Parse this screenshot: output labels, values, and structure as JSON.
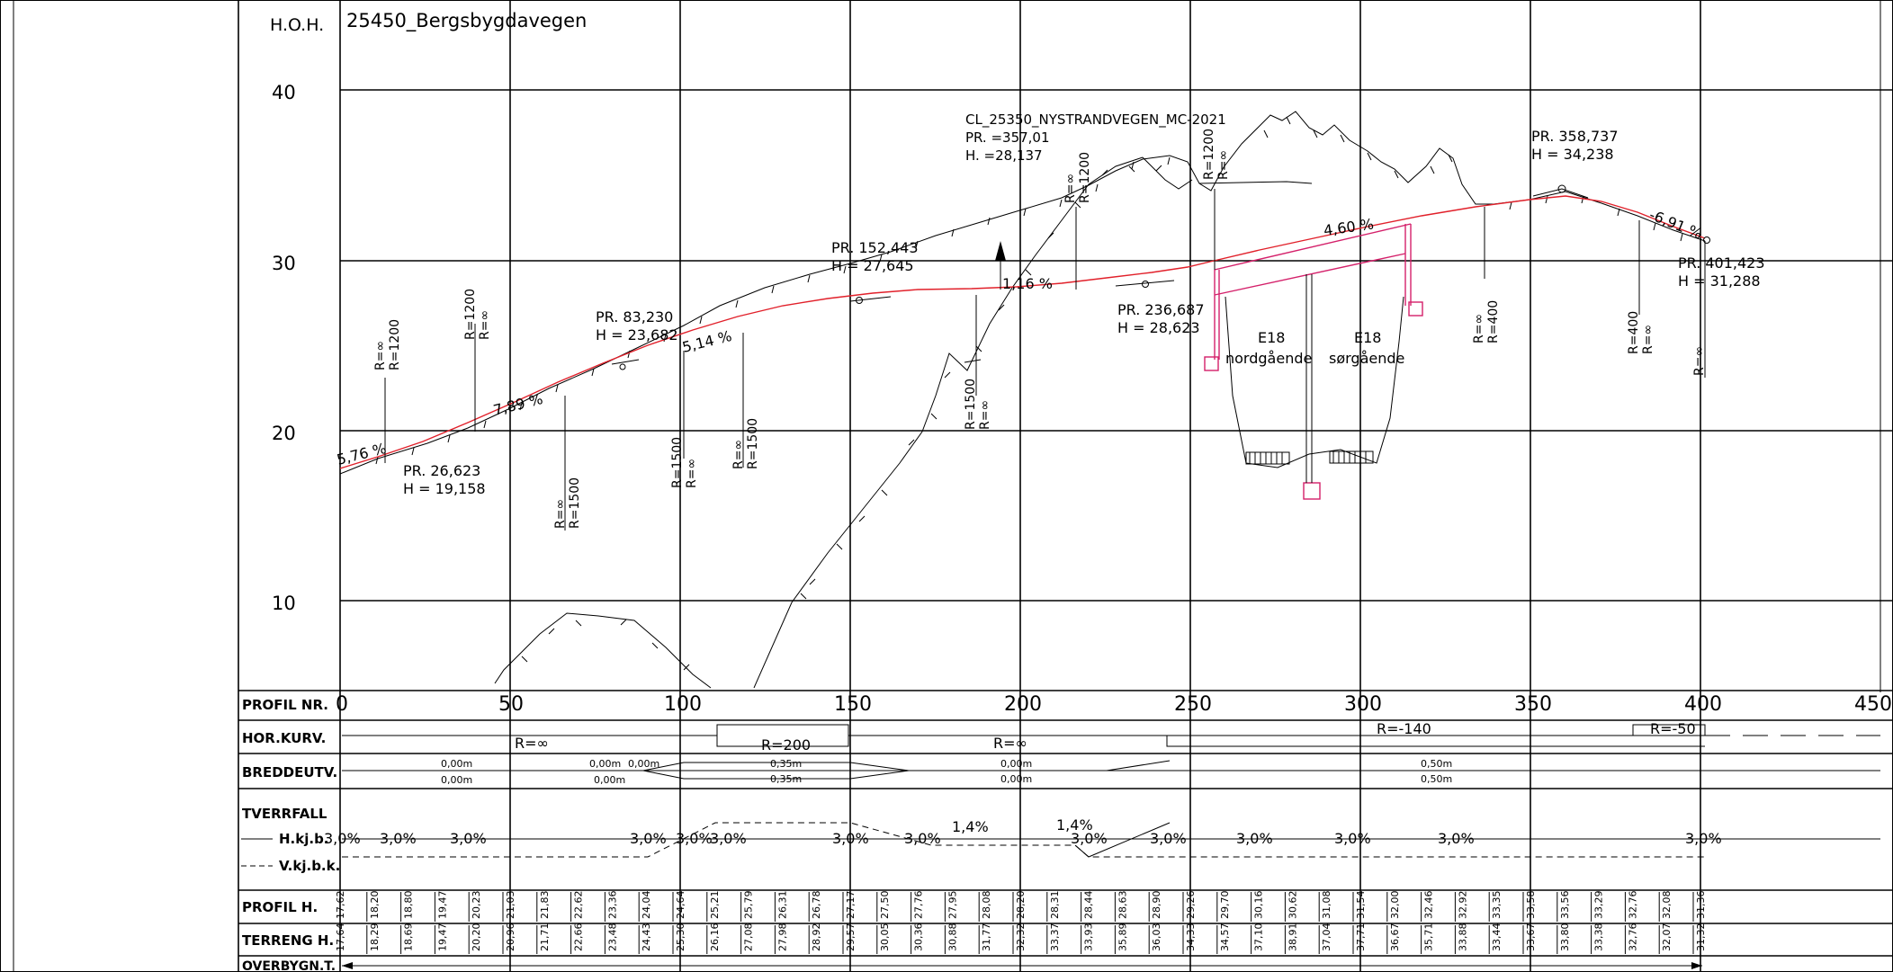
{
  "drawing": {
    "title": "25450_Bergsbygdavegen",
    "hoh_label": "H.O.H."
  },
  "elevation_axis": {
    "ticks": [
      "40",
      "30",
      "20",
      "10"
    ]
  },
  "profile_axis": {
    "ticks": [
      "0",
      "50",
      "100",
      "150",
      "200",
      "250",
      "300",
      "350",
      "400",
      "450"
    ]
  },
  "annotations": {
    "cl_title": "CL_25350_NYSTRANDVEGEN_MC-2021",
    "cl_pr": "PR. =357,01",
    "cl_h": "H. =28,137",
    "pr358_pr": "PR. 358,737",
    "pr358_h": "H = 34,238",
    "pr401_pr": "PR. 401,423",
    "pr401_h": "H = 31,288",
    "pr152_pr": "PR. 152,443",
    "pr152_h": "H = 27,645",
    "pr83_pr": "PR. 83,230",
    "pr83_h": "H = 23,682",
    "pr236_pr": "PR. 236,687",
    "pr236_h": "H = 28,623",
    "pr26_pr": "PR. 26,623",
    "pr26_h": "H = 19,158",
    "e18_a_1": "E18",
    "e18_a_2": "nordgående",
    "e18_b_1": "E18",
    "e18_b_2": "sørgående",
    "grade_576": "5,76 %",
    "grade_789": "7,89 %",
    "grade_514": "5,14 %",
    "grade_116": "1,16 %",
    "grade_460": "4,60 %",
    "grade_691": "-6,91 %"
  },
  "curve_labels": {
    "v1a": "R=∞",
    "v1b": "R=1200",
    "v2a": "R=1200",
    "v2b": "R=∞",
    "v3a": "R=∞",
    "v3b": "R=1500",
    "v4a": "R=1500",
    "v4b": "R=∞",
    "v5a": "R=∞",
    "v5b": "R=1500",
    "v6a": "R=1500",
    "v6b": "R=∞",
    "v7a": "R=∞",
    "v7b": "R=1200",
    "v8a": "R=1200",
    "v8b": "R=∞",
    "v9a": "R=∞",
    "v9b": "R=400",
    "v10a": "R=400",
    "v10b": "R=∞",
    "v11": "R=∞"
  },
  "band_table": {
    "rows": {
      "profil_nr": "PROFIL NR.",
      "hor_kurv": "HOR.KURV.",
      "breddeutv": "BREDDEUTV.",
      "tverrfall": "TVERRFALL",
      "hkjb": "H.kj.b.",
      "vkjb": "V.kj.b.k.",
      "profil_h": "PROFIL H.",
      "terreng_h": "TERRENG H.",
      "overbygn": "OVERBYGN.T."
    },
    "hor_kurv": [
      "R=∞",
      "R=200",
      "R=∞",
      "R=-140",
      "R=-50"
    ],
    "bredde": [
      "0,00m",
      "0,00m",
      "0,00m",
      "0,00m",
      "0,00m",
      "0,00m",
      "0,35m",
      "0,35m",
      "0,00m",
      "0,00m",
      "0,50m",
      "0,50m"
    ],
    "tverrfall": [
      "3,0%",
      "3,0%",
      "3,0%",
      "3,0%",
      "3,0%",
      "3,0%",
      "3,0%",
      "1,4%",
      "3,0%",
      "1,4%",
      "3,0%",
      "3,0%",
      "3,0%",
      "3,0%",
      "3,0%",
      "3,0%"
    ],
    "profil_h": [
      "17,62",
      "18,20",
      "18,80",
      "19,47",
      "20,23",
      "21,03",
      "21,83",
      "22,62",
      "23,36",
      "24,04",
      "24,64",
      "25,21",
      "25,79",
      "26,31",
      "26,78",
      "27,17",
      "27,50",
      "27,76",
      "27,95",
      "28,08",
      "28,20",
      "28,31",
      "28,44",
      "28,63",
      "28,90",
      "29,26",
      "29,70",
      "30,16",
      "30,62",
      "31,08",
      "31,54",
      "32,00",
      "32,46",
      "32,92",
      "33,35",
      "33,58",
      "33,56",
      "33,29",
      "32,76",
      "32,08",
      "31,36"
    ],
    "terreng_h": [
      "17,64",
      "18,29",
      "18,69",
      "19,47",
      "20,20",
      "20,96",
      "21,71",
      "22,66",
      "23,48",
      "24,43",
      "25,30",
      "26,16",
      "27,08",
      "27,98",
      "28,92",
      "29,57",
      "30,05",
      "30,36",
      "30,88",
      "31,77",
      "32,32",
      "33,37",
      "33,93",
      "35,89",
      "36,03",
      "34,33",
      "34,57",
      "37,10",
      "38,91",
      "37,04",
      "37,71",
      "36,67",
      "35,71",
      "33,88",
      "33,44",
      "33,67",
      "33,80",
      "33,38",
      "32,76",
      "32,07",
      "31,32"
    ]
  }
}
